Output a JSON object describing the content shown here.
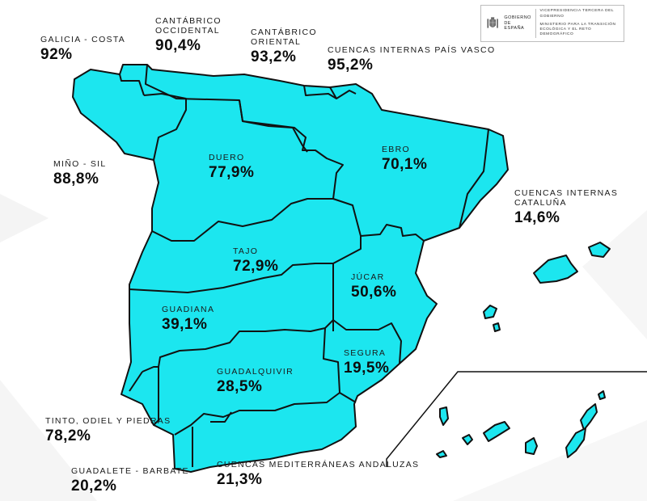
{
  "header": {
    "logo": {
      "name": "gobierno-de-espana-logo",
      "left_text": "GOBIERNO DE ESPAÑA",
      "right_line1": "VICEPRESIDENCIA TERCERA DEL GOBIERNO",
      "right_line2": "MINISTERIO PARA LA TRANSICIÓN ECOLÓGICA Y EL RETO DEMOGRÁFICO"
    }
  },
  "map": {
    "fill_color": "#1ce6ef",
    "stroke_color": "#111111",
    "basins": [
      {
        "id": "galicia-costa",
        "name": "GALICIA - COSTA",
        "percent": "92%"
      },
      {
        "id": "cantabrico-occidental",
        "name": "CANTÁBRICO OCCIDENTAL",
        "name_line1": "CANTÁBRICO",
        "name_line2": "OCCIDENTAL",
        "percent": "90,4%"
      },
      {
        "id": "cantabrico-oriental",
        "name": "CANTÁBRICO ORIENTAL",
        "name_line1": "CANTÁBRICO",
        "name_line2": "ORIENTAL",
        "percent": "93,2%"
      },
      {
        "id": "cuencas-internas-pais-vasco",
        "name": "CUENCAS INTERNAS PAÍS VASCO",
        "percent": "95,2%"
      },
      {
        "id": "mino-sil",
        "name": "MIÑO - SIL",
        "percent": "88,8%"
      },
      {
        "id": "duero",
        "name": "DUERO",
        "percent": "77,9%"
      },
      {
        "id": "ebro",
        "name": "EBRO",
        "percent": "70,1%"
      },
      {
        "id": "cuencas-internas-cataluna",
        "name": "CUENCAS INTERNAS CATALUÑA",
        "name_line1": "CUENCAS INTERNAS",
        "name_line2": "CATALUÑA",
        "percent": "14,6%"
      },
      {
        "id": "tajo",
        "name": "TAJO",
        "percent": "72,9%"
      },
      {
        "id": "jucar",
        "name": "JÚCAR",
        "percent": "50,6%"
      },
      {
        "id": "guadiana",
        "name": "GUADIANA",
        "percent": "39,1%"
      },
      {
        "id": "segura",
        "name": "SEGURA",
        "percent": "19,5%"
      },
      {
        "id": "guadalquivir",
        "name": "GUADALQUIVIR",
        "percent": "28,5%"
      },
      {
        "id": "tinto-odiel-piedras",
        "name": "TINTO, ODIEL Y PIEDRAS",
        "percent": "78,2%"
      },
      {
        "id": "guadalete-barbate",
        "name": "GUADALETE - BARBATE",
        "percent": "20,2%"
      },
      {
        "id": "cuencas-mediterraneas-andaluzas",
        "name": "CUENCAS MEDITERRÁNEAS ANDALUZAS",
        "percent": "21,3%"
      }
    ]
  }
}
